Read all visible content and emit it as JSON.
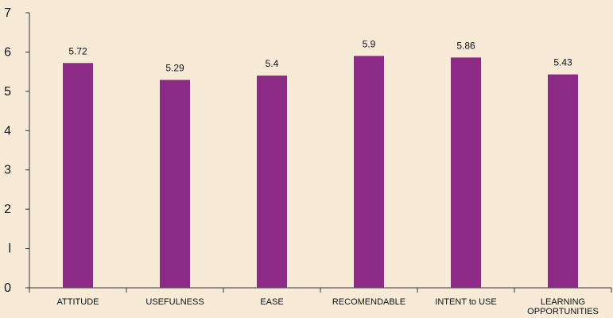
{
  "chart_data": {
    "type": "bar",
    "categories": [
      [
        "ATTITUDE"
      ],
      [
        "USEFULNESS"
      ],
      [
        "EASE"
      ],
      [
        "RECOMENDABLE"
      ],
      [
        "INTENT to USE"
      ],
      [
        "LEARNING",
        "OPPORTUNITIES"
      ]
    ],
    "values": [
      5.72,
      5.29,
      5.4,
      5.9,
      5.86,
      5.43
    ],
    "data_labels": [
      "5.72",
      "5.29",
      "5.4",
      "5.9",
      "5.86",
      "5.43"
    ],
    "y_ticks": [
      "0",
      "l",
      "2",
      "3",
      "4",
      "5",
      "6",
      "7"
    ],
    "ylim": [
      0,
      7
    ],
    "grid": false,
    "legend": "none",
    "colors": {
      "bar": "#8b2b86",
      "background": "#f7ead7"
    }
  }
}
